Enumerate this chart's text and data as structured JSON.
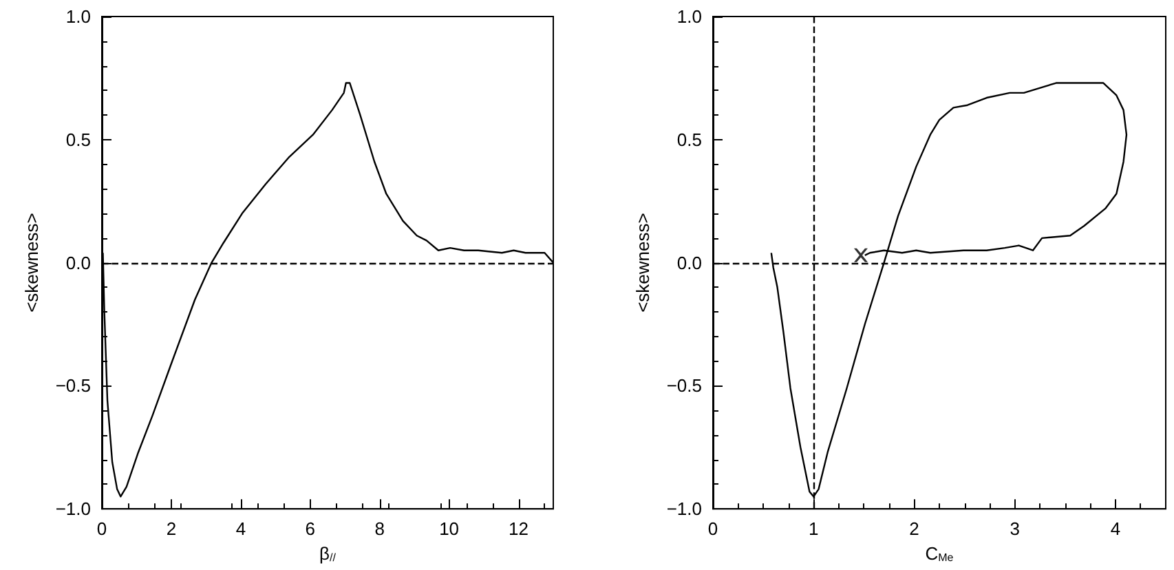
{
  "chart_data": [
    {
      "type": "line",
      "xlabel": "β$_{//}$",
      "ylabel": "<skewness>",
      "xlim": [
        0,
        13
      ],
      "ylim": [
        -1,
        1
      ],
      "xticks": [
        0,
        2,
        4,
        6,
        8,
        10,
        12
      ],
      "yticks": [
        {
          "value": -1,
          "label": "−1.0"
        },
        {
          "value": -0.5,
          "label": "−0.5"
        },
        {
          "value": 0,
          "label": "0.0"
        },
        {
          "value": 0.5,
          "label": "0.5"
        },
        {
          "value": 1,
          "label": "1.0"
        }
      ],
      "grid": false,
      "ref_lines": [
        {
          "axis": "y",
          "value": 0,
          "line_style": "dashed",
          "color": "#000000"
        }
      ],
      "series": [
        {
          "color": "#000000",
          "marker": "none",
          "x": [
            0.03,
            0.07,
            0.16,
            0.3,
            0.44,
            0.54,
            0.71,
            1.05,
            1.46,
            2.0,
            2.68,
            3.16,
            3.5,
            4.04,
            4.72,
            5.4,
            6.08,
            6.63,
            6.97,
            7.03,
            7.14,
            7.44,
            7.85,
            8.19,
            8.67,
            9.07,
            9.35,
            9.69,
            10.03,
            10.43,
            10.84,
            11.52,
            11.86,
            12.2,
            12.75,
            13.0
          ],
          "values": [
            0.04,
            -0.19,
            -0.56,
            -0.81,
            -0.92,
            -0.95,
            -0.91,
            -0.77,
            -0.62,
            -0.41,
            -0.15,
            0,
            0.08,
            0.2,
            0.32,
            0.43,
            0.52,
            0.62,
            0.69,
            0.73,
            0.73,
            0.6,
            0.41,
            0.28,
            0.17,
            0.11,
            0.09,
            0.05,
            0.06,
            0.05,
            0.05,
            0.04,
            0.05,
            0.04,
            0.04,
            0.0
          ]
        }
      ]
    },
    {
      "type": "line",
      "xlabel": "C$_{Me}$",
      "ylabel": "<skewness>",
      "xlim": [
        0,
        4.5
      ],
      "ylim": [
        -1,
        1
      ],
      "xticks": [
        0,
        1,
        2,
        3,
        4
      ],
      "yticks": [
        {
          "value": -1,
          "label": "−1.0"
        },
        {
          "value": -0.5,
          "label": "−0.5"
        },
        {
          "value": 0,
          "label": "0.0"
        },
        {
          "value": 0.5,
          "label": "0.5"
        },
        {
          "value": 1,
          "label": "1.0"
        }
      ],
      "grid": false,
      "ref_lines": [
        {
          "axis": "y",
          "value": 0,
          "line_style": "dashed",
          "color": "#000000"
        },
        {
          "axis": "x",
          "value": 1,
          "line_style": "dashed",
          "color": "#000000"
        }
      ],
      "series": [
        {
          "color": "#000000",
          "marker": "none",
          "x": [
            0.58,
            0.6,
            0.64,
            0.7,
            0.77,
            0.87,
            0.96,
            1.0,
            1.05,
            1.14,
            1.33,
            1.51,
            1.7,
            1.84,
            2.02,
            2.16,
            2.25,
            2.39,
            2.53,
            2.72,
            2.95,
            3.09,
            3.41,
            3.74,
            3.88,
            4.01,
            4.08,
            4.11,
            4.08,
            4.01,
            3.9,
            3.69,
            3.55,
            3.27,
            3.18,
            3.04,
            2.9,
            2.72,
            2.49,
            2.16,
            2.02,
            1.88,
            1.7,
            1.56,
            1.51
          ],
          "values": [
            0.04,
            -0.02,
            -0.1,
            -0.28,
            -0.51,
            -0.75,
            -0.93,
            -0.95,
            -0.92,
            -0.77,
            -0.51,
            -0.25,
            0,
            0.19,
            0.39,
            0.52,
            0.58,
            0.63,
            0.64,
            0.67,
            0.69,
            0.69,
            0.73,
            0.73,
            0.73,
            0.68,
            0.62,
            0.52,
            0.41,
            0.28,
            0.22,
            0.15,
            0.11,
            0.1,
            0.05,
            0.07,
            0.06,
            0.05,
            0.05,
            0.04,
            0.05,
            0.04,
            0.05,
            0.04,
            0.03
          ]
        },
        {
          "type": "scatter",
          "color": "#000000",
          "marker": "cross",
          "x": [
            1.47
          ],
          "values": [
            0.03
          ]
        }
      ]
    }
  ]
}
